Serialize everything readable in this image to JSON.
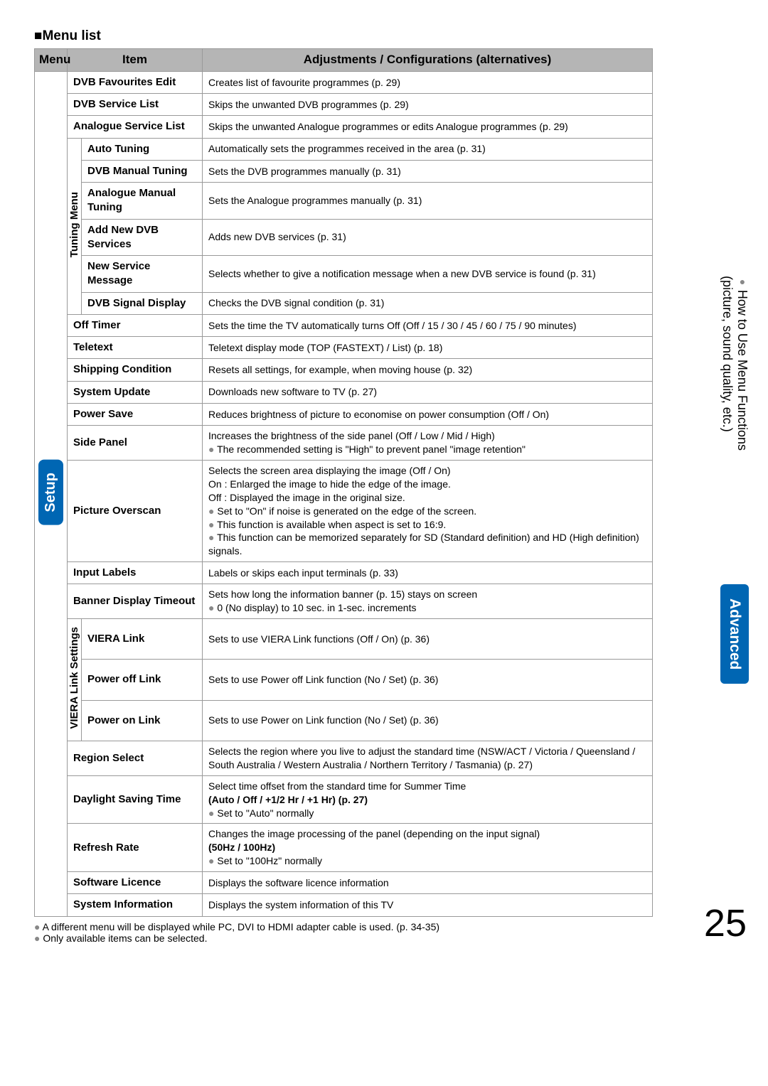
{
  "title": "■Menu list",
  "headers": {
    "menu": "Menu",
    "item": "Item",
    "adj": "Adjustments / Configurations (alternatives)"
  },
  "setup_label": "Setup",
  "tuning_label": "Tuning Menu",
  "viera_label": "VIERA Link Settings",
  "side_tab_plain_line1": "How to Use Menu Functions",
  "side_tab_plain_line2": "(picture, sound quality, etc.)",
  "side_tab_adv": "Advanced",
  "page_number": "25",
  "rows": {
    "dvb_fav": {
      "item": "DVB Favourites Edit",
      "adj": "Creates list of favourite programmes (p. 29)"
    },
    "dvb_svc": {
      "item": "DVB Service List",
      "adj": "Skips the unwanted DVB programmes (p. 29)"
    },
    "ana_svc": {
      "item": "Analogue Service List",
      "adj": "Skips the unwanted Analogue programmes or edits Analogue programmes (p. 29)"
    },
    "auto_tun": {
      "item": "Auto Tuning",
      "adj": "Automatically sets the programmes received in the area (p. 31)"
    },
    "dvb_man": {
      "item": "DVB Manual Tuning",
      "adj": "Sets the DVB programmes manually (p. 31)"
    },
    "ana_man": {
      "item": "Analogue Manual Tuning",
      "adj": "Sets the Analogue programmes manually (p. 31)"
    },
    "add_dvb": {
      "item": "Add New DVB Services",
      "adj": "Adds new DVB services (p. 31)"
    },
    "new_msg": {
      "item": "New Service Message",
      "adj": "Selects whether to give a notification message when a new DVB service is found (p. 31)"
    },
    "dvb_sig": {
      "item": "DVB Signal Display",
      "adj": "Checks the DVB signal condition (p. 31)"
    },
    "off_timer": {
      "item": "Off Timer",
      "adj": "Sets the time the TV automatically turns Off (Off / 15 / 30 / 45 / 60 / 75 / 90 minutes)"
    },
    "teletext": {
      "item": "Teletext",
      "adj": "Teletext display mode (TOP (FASTEXT) / List) (p. 18)"
    },
    "ship": {
      "item": "Shipping Condition",
      "adj": "Resets all settings, for example, when moving house (p. 32)"
    },
    "sys_upd": {
      "item": "System Update",
      "adj": "Downloads new software to TV (p. 27)"
    },
    "pwr_save": {
      "item": "Power Save",
      "adj": "Reduces brightness of picture to economise on power consumption (Off / On)"
    },
    "side_panel": {
      "item": "Side Panel",
      "l1": "Increases the brightness of the side panel (Off / Low / Mid / High)",
      "l2": "The recommended setting is \"High\" to prevent panel \"image retention\""
    },
    "overscan": {
      "item": "Picture Overscan",
      "l1": "Selects the screen area displaying the image (Off / On)",
      "l2": "On : Enlarged the image to hide the edge of the image.",
      "l3": "Off : Displayed the image in the original size.",
      "l4": "Set to \"On\" if noise is generated on the edge of the screen.",
      "l5": "This function is available when aspect is set to 16:9.",
      "l6": "This function can be memorized separately for SD (Standard definition) and HD (High definition) signals."
    },
    "input_lbl": {
      "item": "Input Labels",
      "adj": "Labels or skips each input terminals (p. 33)"
    },
    "banner": {
      "item": "Banner Display Timeout",
      "l1": "Sets how long the information banner (p. 15) stays on screen",
      "l2": "0 (No display) to 10 sec. in 1-sec. increments"
    },
    "viera_link": {
      "item": "VIERA Link",
      "adj": "Sets to use VIERA Link functions (Off / On) (p. 36)"
    },
    "pwr_off": {
      "item": "Power off Link",
      "adj": "Sets to use Power off Link function (No / Set) (p. 36)"
    },
    "pwr_on": {
      "item": "Power on Link",
      "adj": "Sets to use Power on Link function (No / Set) (p. 36)"
    },
    "region": {
      "item": "Region Select",
      "l1": "Selects the region where you live to adjust the standard time (NSW/ACT / Victoria / Queensland / South Australia / Western Australia / Northern Territory / Tasmania) (p. 27)"
    },
    "dst": {
      "item": "Daylight Saving Time",
      "l1": "Select time offset from the standard time for Summer Time",
      "l2": "(Auto / Off / +1/2 Hr / +1 Hr) (p. 27)",
      "l3": "Set to \"Auto\" normally"
    },
    "refresh": {
      "item": "Refresh Rate",
      "l1": "Changes the image processing of the panel (depending on the input signal)",
      "l2": "(50Hz / 100Hz)",
      "l3": "Set to \"100Hz\" normally"
    },
    "licence": {
      "item": "Software Licence",
      "adj": "Displays the software licence information"
    },
    "sys_info": {
      "item": "System Information",
      "adj": "Displays the system information of this TV"
    }
  },
  "footnotes": {
    "f1": "A different menu will be displayed while PC, DVI to HDMI adapter cable is used. (p. 34-35)",
    "f2": "Only available items can be selected."
  }
}
